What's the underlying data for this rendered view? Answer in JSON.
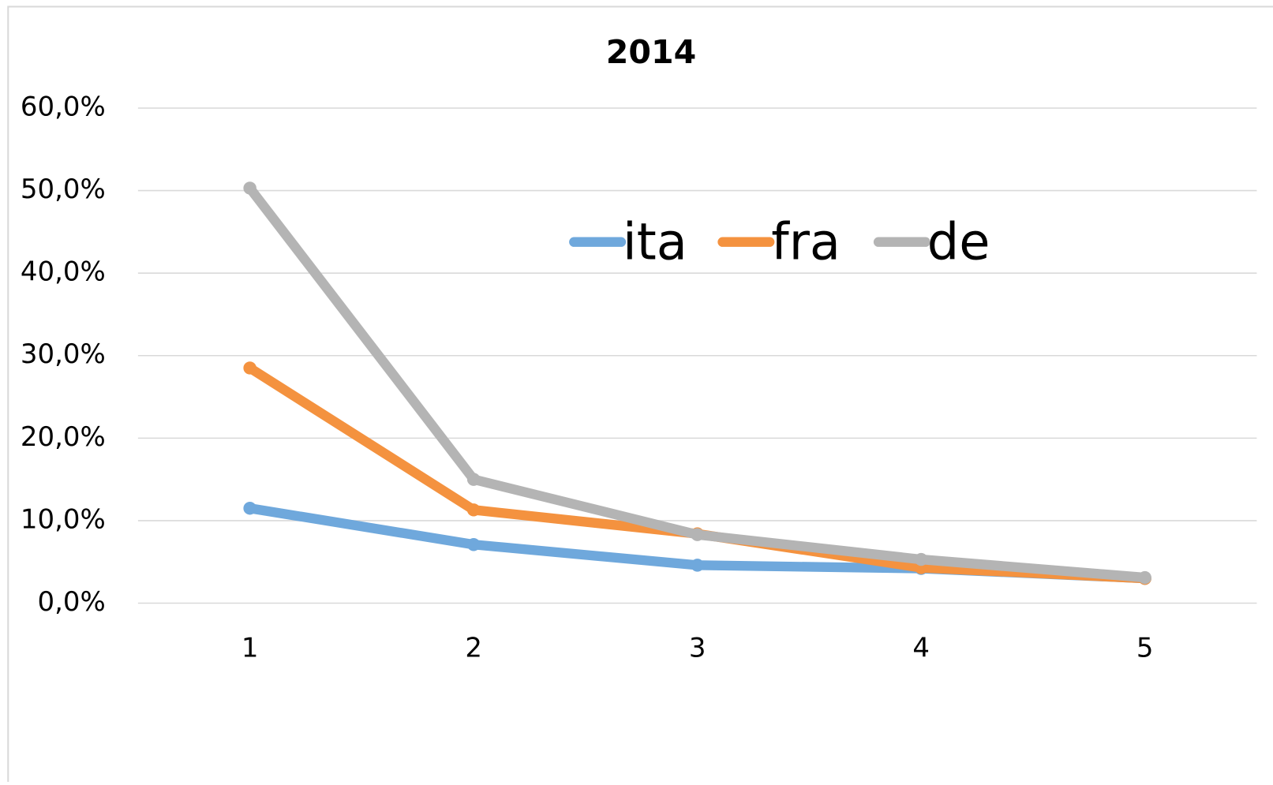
{
  "chart_data": {
    "type": "line",
    "title": "2014",
    "categories": [
      "1",
      "2",
      "3",
      "4",
      "5"
    ],
    "series": [
      {
        "name": "ita",
        "color": "#6fa8dc",
        "values": [
          11.5,
          7.1,
          4.6,
          4.2,
          3.0
        ]
      },
      {
        "name": "fra",
        "color": "#f4923f",
        "values": [
          28.5,
          11.3,
          8.4,
          4.3,
          3.0
        ]
      },
      {
        "name": "de",
        "color": "#b4b4b4",
        "values": [
          50.3,
          15.0,
          8.3,
          5.3,
          3.1
        ]
      }
    ],
    "ylim": [
      0,
      60
    ],
    "yticks": [
      {
        "value": 0,
        "label": "0,0%"
      },
      {
        "value": 10,
        "label": "10,0%"
      },
      {
        "value": 20,
        "label": "20,0%"
      },
      {
        "value": 30,
        "label": "30,0%"
      },
      {
        "value": 40,
        "label": "40,0%"
      },
      {
        "value": 50,
        "label": "50,0%"
      },
      {
        "value": 60,
        "label": "60,0%"
      }
    ],
    "grid": true,
    "legend": "top"
  }
}
